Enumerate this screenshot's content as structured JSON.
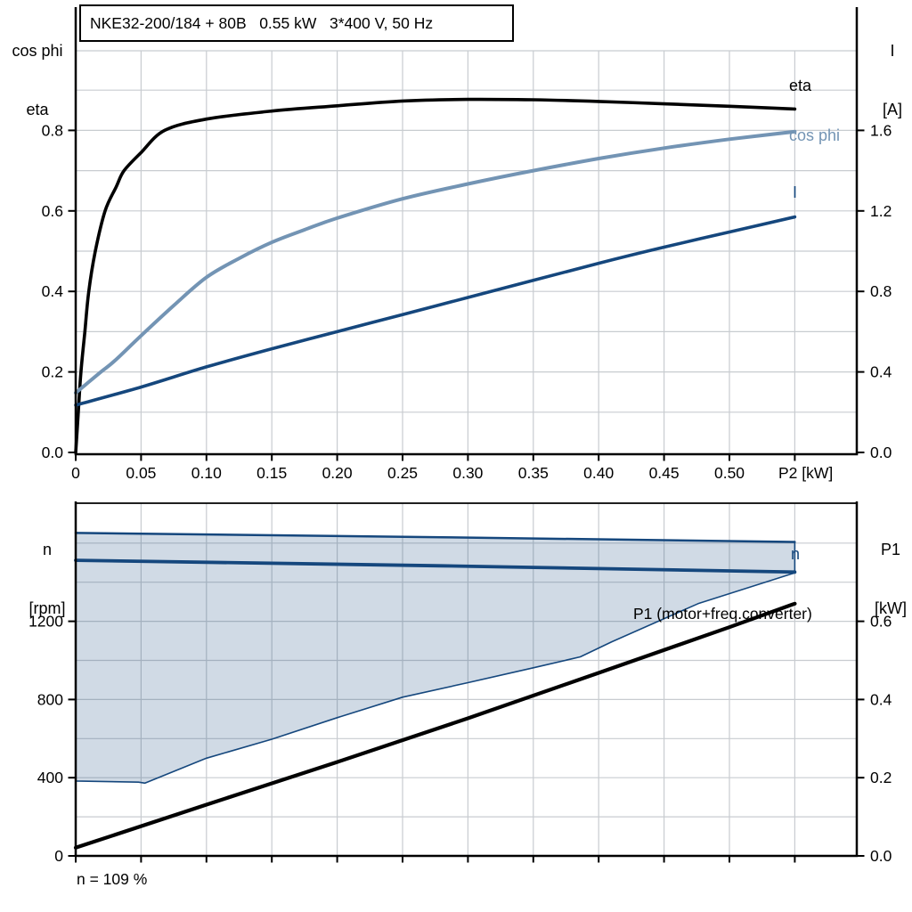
{
  "colors": {
    "dark_blue": "#15477D",
    "light_blue": "#7394B4",
    "black": "#000000",
    "grid": "#C8CCD0",
    "area_opacity": 0.2
  },
  "chart_data": [
    {
      "type": "line",
      "title": "NKE32-200/184 + 80B   0.55 kW   3*400 V, 50 Hz",
      "x_axis": {
        "label": "P2 [kW]",
        "min": 0,
        "max": 0.597,
        "ticks": {
          "values": [
            0,
            0.05,
            0.1,
            0.15,
            0.2,
            0.25,
            0.3,
            0.35,
            0.4,
            0.45,
            0.5,
            0.55
          ],
          "labels": [
            "0",
            "0.05",
            "0.10",
            "0.15",
            "0.20",
            "0.25",
            "0.30",
            "0.35",
            "0.40",
            "0.45",
            "0.50",
            ""
          ]
        },
        "minor_grid_step": 0.05
      },
      "y_left": {
        "line1": "cos phi",
        "line2": "eta",
        "min": 0,
        "max": 1.0,
        "ticks": {
          "values": [
            0,
            0.2,
            0.4,
            0.6,
            0.8
          ],
          "labels": [
            "0.0",
            "0.2",
            "0.4",
            "0.6",
            "0.8"
          ]
        },
        "minor_grid_step": 0.1
      },
      "y_right": {
        "line1": "I",
        "line2": "[A]",
        "min": 0,
        "max": 2.0,
        "ticks": {
          "values": [
            0,
            0.4,
            0.8,
            1.2,
            1.6
          ],
          "labels": [
            "0.0",
            "0.4",
            "0.8",
            "1.2",
            "1.6"
          ]
        }
      },
      "series": [
        {
          "id": "eta",
          "name": "eta",
          "axis": "left",
          "color": "#000000",
          "width": 3.6,
          "smooth": true,
          "points": [
            [
              0,
              0
            ],
            [
              0.002,
              0.1
            ],
            [
              0.004,
              0.2
            ],
            [
              0.007,
              0.3
            ],
            [
              0.01,
              0.4
            ],
            [
              0.015,
              0.5
            ],
            [
              0.0225,
              0.6
            ],
            [
              0.031,
              0.66
            ],
            [
              0.037,
              0.7
            ],
            [
              0.05,
              0.745
            ],
            [
              0.068,
              0.8
            ],
            [
              0.1,
              0.828
            ],
            [
              0.15,
              0.848
            ],
            [
              0.2,
              0.861
            ],
            [
              0.25,
              0.873
            ],
            [
              0.3,
              0.877
            ],
            [
              0.35,
              0.876
            ],
            [
              0.4,
              0.872
            ],
            [
              0.45,
              0.866
            ],
            [
              0.5,
              0.86
            ],
            [
              0.55,
              0.853
            ]
          ]
        },
        {
          "id": "cos-phi",
          "name": "cos phi",
          "axis": "left",
          "color": "#7394B4",
          "width": 4,
          "smooth": true,
          "points": [
            [
              0,
              0.148
            ],
            [
              0.01,
              0.175
            ],
            [
              0.02,
              0.202
            ],
            [
              0.03,
              0.228
            ],
            [
              0.05,
              0.29
            ],
            [
              0.075,
              0.365
            ],
            [
              0.1,
              0.435
            ],
            [
              0.125,
              0.482
            ],
            [
              0.15,
              0.522
            ],
            [
              0.175,
              0.553
            ],
            [
              0.2,
              0.582
            ],
            [
              0.25,
              0.63
            ],
            [
              0.3,
              0.667
            ],
            [
              0.35,
              0.7
            ],
            [
              0.4,
              0.73
            ],
            [
              0.45,
              0.756
            ],
            [
              0.5,
              0.778
            ],
            [
              0.55,
              0.797
            ]
          ]
        },
        {
          "id": "current",
          "name": "I",
          "axis": "right",
          "color": "#15477D",
          "width": 3.6,
          "smooth": true,
          "points": [
            [
              0,
              0.235
            ],
            [
              0.05,
              0.325
            ],
            [
              0.1,
              0.425
            ],
            [
              0.15,
              0.515
            ],
            [
              0.2,
              0.6
            ],
            [
              0.25,
              0.685
            ],
            [
              0.3,
              0.77
            ],
            [
              0.35,
              0.855
            ],
            [
              0.4,
              0.94
            ],
            [
              0.45,
              1.02
            ],
            [
              0.5,
              1.095
            ],
            [
              0.55,
              1.17
            ]
          ]
        }
      ]
    },
    {
      "type": "line+area",
      "x_axis": {
        "label": "",
        "min": 0,
        "max": 0.597,
        "ticks": {
          "values": [
            0,
            0.05,
            0.1,
            0.15,
            0.2,
            0.25,
            0.3,
            0.35,
            0.4,
            0.45,
            0.5,
            0.55
          ],
          "labels": [
            "",
            "",
            "",
            "",
            "",
            "",
            "",
            "",
            "",
            "",
            "",
            ""
          ]
        },
        "minor_grid_step": 0.05
      },
      "y_left": {
        "line1": "n",
        "line2": "[rpm]",
        "min": 0,
        "max": 1805,
        "ticks": {
          "values": [
            0,
            400,
            800,
            1200
          ],
          "labels": [
            "0",
            "400",
            "800",
            "1200"
          ]
        },
        "minor_grid_step": 200
      },
      "y_right": {
        "line1": "P1",
        "line2": "[kW]",
        "min": 0,
        "max": 0.902,
        "ticks": {
          "values": [
            0,
            0.2,
            0.4,
            0.6
          ],
          "labels": [
            "0.0",
            "0.2",
            "0.4",
            "0.6"
          ]
        }
      },
      "area": {
        "name": "speed-control-range",
        "upper": [
          [
            0,
            1652
          ],
          [
            0.28,
            1630
          ],
          [
            0.55,
            1606
          ]
        ],
        "lower": [
          [
            0,
            383
          ],
          [
            0.048,
            377
          ],
          [
            0.053,
            372
          ],
          [
            0.1,
            500
          ],
          [
            0.15,
            597
          ],
          [
            0.2,
            707
          ],
          [
            0.25,
            812
          ],
          [
            0.3,
            886
          ],
          [
            0.35,
            962
          ],
          [
            0.386,
            1018
          ],
          [
            0.41,
            1095
          ],
          [
            0.476,
            1290
          ],
          [
            0.55,
            1448
          ]
        ]
      },
      "series": [
        {
          "id": "speed",
          "name": "n",
          "axis": "left",
          "color": "#15477D",
          "width": 3.8,
          "smooth": false,
          "points": [
            [
              0,
              1512
            ],
            [
              0.28,
              1484
            ],
            [
              0.55,
              1452
            ]
          ]
        },
        {
          "id": "p1-input-power",
          "name": "P1 (motor+freq.converter)",
          "axis": "right",
          "color": "#000000",
          "width": 4.2,
          "smooth": false,
          "points": [
            [
              0,
              0.021
            ],
            [
              0.1,
              0.131
            ],
            [
              0.2,
              0.24
            ],
            [
              0.3,
              0.352
            ],
            [
              0.4,
              0.468
            ],
            [
              0.5,
              0.585
            ],
            [
              0.55,
              0.645
            ]
          ]
        }
      ],
      "footnote": "n = 109 %"
    }
  ]
}
